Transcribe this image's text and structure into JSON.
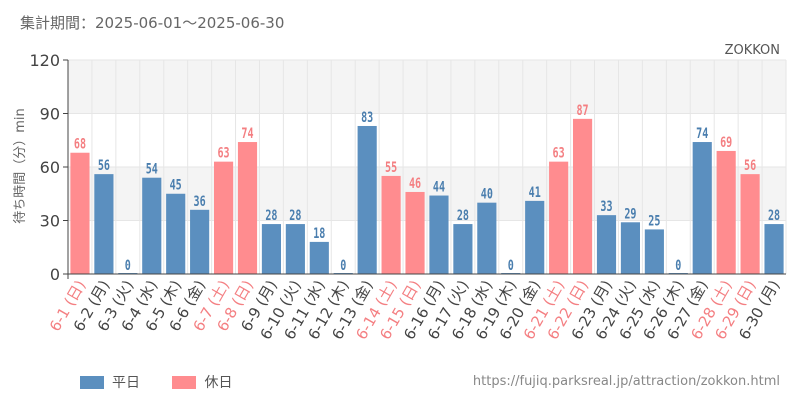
{
  "header": {
    "period_label": "集計期間：",
    "period_range": "2025-06-01〜2025-06-30"
  },
  "source_url": "https://fujiq.parksreal.jp/attraction/zokkon.html",
  "legend": [
    {
      "label": "平日",
      "color": "#5b8fbf"
    },
    {
      "label": "休日",
      "color": "#ff8c8f"
    }
  ],
  "colors": {
    "weekday": "#5b8fbf",
    "holiday": "#ff8c8f",
    "weekday_label": "#4a7eae",
    "holiday_label": "#f47f82",
    "grid": "#e6e6e6",
    "band": "#f4f4f4"
  },
  "chart_data": {
    "type": "bar",
    "title": "ZOKKON",
    "ylabel": "待ち時間（分）min",
    "xlabel": "",
    "ylim": [
      0,
      120
    ],
    "yticks": [
      0,
      30,
      60,
      90,
      120
    ],
    "grid": true,
    "legend_position": "bottom-left",
    "categories": [
      "6-1 (日)",
      "6-2 (月)",
      "6-3 (火)",
      "6-4 (水)",
      "6-5 (木)",
      "6-6 (金)",
      "6-7 (土)",
      "6-8 (日)",
      "6-9 (月)",
      "6-10 (火)",
      "6-11 (水)",
      "6-12 (木)",
      "6-13 (金)",
      "6-14 (土)",
      "6-15 (日)",
      "6-16 (月)",
      "6-17 (火)",
      "6-18 (水)",
      "6-19 (木)",
      "6-20 (金)",
      "6-21 (土)",
      "6-22 (日)",
      "6-23 (月)",
      "6-24 (火)",
      "6-25 (水)",
      "6-26 (木)",
      "6-27 (金)",
      "6-28 (土)",
      "6-29 (日)",
      "6-30 (月)"
    ],
    "values": [
      68,
      56,
      0,
      54,
      45,
      36,
      63,
      74,
      28,
      28,
      18,
      0,
      83,
      55,
      46,
      44,
      28,
      40,
      0,
      41,
      63,
      87,
      33,
      29,
      25,
      0,
      74,
      69,
      56,
      28
    ],
    "day_type": [
      "休日",
      "平日",
      "平日",
      "平日",
      "平日",
      "平日",
      "休日",
      "休日",
      "平日",
      "平日",
      "平日",
      "平日",
      "平日",
      "休日",
      "休日",
      "平日",
      "平日",
      "平日",
      "平日",
      "平日",
      "休日",
      "休日",
      "平日",
      "平日",
      "平日",
      "平日",
      "平日",
      "休日",
      "休日",
      "平日"
    ]
  }
}
